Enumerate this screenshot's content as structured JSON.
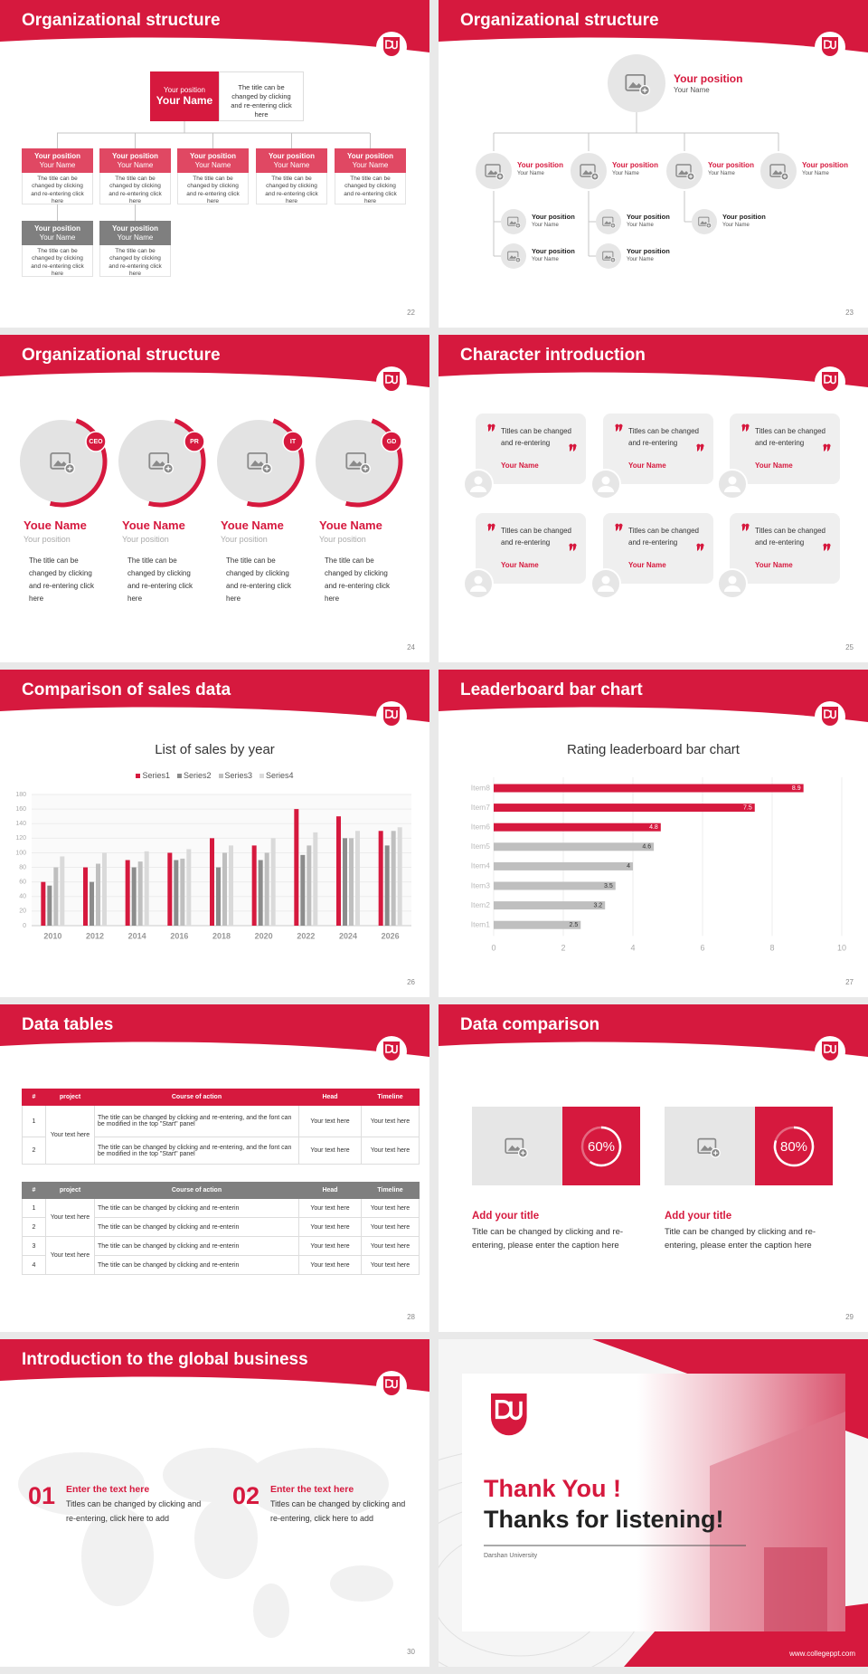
{
  "slides": [
    {
      "title": "Organizational structure",
      "page": "22",
      "top": {
        "position": "Your position",
        "name": "Your Name",
        "text": "The title can be changed by clicking and re-entering click here"
      },
      "boxes": [
        {
          "position": "Your position",
          "name": "Your Name",
          "text": "The title can be changed by clicking and re-entering click here"
        },
        {
          "position": "Your position",
          "name": "Your Name",
          "text": "The title can be changed by clicking and re-entering click here"
        },
        {
          "position": "Your position",
          "name": "Your Name",
          "text": "The title can be changed by clicking and re-entering click here"
        },
        {
          "position": "Your position",
          "name": "Your Name",
          "text": "The title can be changed by clicking and re-entering click here"
        },
        {
          "position": "Your position",
          "name": "Your Name",
          "text": "The title can be changed by clicking and re-entering click here"
        },
        {
          "position": "Your position",
          "name": "Your Name",
          "text": "The title can be changed by clicking and re-entering click here"
        },
        {
          "position": "Your position",
          "name": "Your Name",
          "text": "The title can be changed by clicking and re-entering click here"
        }
      ]
    },
    {
      "title": "Organizational structure",
      "page": "23",
      "top": {
        "position": "Your position",
        "name": "Your Name"
      },
      "level1": [
        {
          "position": "Your position",
          "name": "Your Name"
        },
        {
          "position": "Your position",
          "name": "Your Name"
        },
        {
          "position": "Your position",
          "name": "Your Name"
        },
        {
          "position": "Your position",
          "name": "Your Name"
        }
      ],
      "level2": [
        {
          "position": "Your position",
          "name": "Your Name"
        },
        {
          "position": "Your position",
          "name": "Your Name"
        },
        {
          "position": "Your position",
          "name": "Your Name"
        },
        {
          "position": "Your position",
          "name": "Your Name"
        },
        {
          "position": "Your position",
          "name": "Your Name"
        }
      ]
    },
    {
      "title": "Organizational structure",
      "page": "24",
      "people": [
        {
          "tag": "CEO",
          "name": "Youe Name",
          "position": "Your position",
          "text": "The title can be changed by clicking and re-entering click here"
        },
        {
          "tag": "PR",
          "name": "Youe Name",
          "position": "Your position",
          "text": "The title can be changed by clicking and re-entering click here"
        },
        {
          "tag": "IT",
          "name": "Youe Name",
          "position": "Your position",
          "text": "The title can be changed by clicking and re-entering click here"
        },
        {
          "tag": "GD",
          "name": "Youe Name",
          "position": "Your position",
          "text": "The title can be changed by clicking and re-entering click here"
        }
      ]
    },
    {
      "title": "Character introduction",
      "page": "25",
      "quotes": [
        {
          "text": "Titles can be changed and re-entering",
          "name": "Your Name"
        },
        {
          "text": "Titles can be changed and re-entering",
          "name": "Your Name"
        },
        {
          "text": "Titles can be changed and re-entering",
          "name": "Your Name"
        },
        {
          "text": "Titles can be changed and re-entering",
          "name": "Your Name"
        },
        {
          "text": "Titles can be changed and re-entering",
          "name": "Your Name"
        },
        {
          "text": "Titles can be changed and re-entering",
          "name": "Your Name"
        }
      ]
    },
    {
      "title": "Comparison of sales data",
      "page": "26",
      "chart": {
        "type": "bar",
        "title": "List of sales by year",
        "categories": [
          "2010",
          "2012",
          "2014",
          "2016",
          "2018",
          "2020",
          "2022",
          "2024",
          "2026"
        ],
        "series": [
          {
            "name": "Series1",
            "color": "#d6193e",
            "values": [
              60,
              80,
              90,
              100,
              120,
              110,
              160,
              150,
              130
            ]
          },
          {
            "name": "Series2",
            "color": "#8c8c8c",
            "values": [
              55,
              60,
              80,
              90,
              80,
              90,
              97,
              120,
              110
            ]
          },
          {
            "name": "Series3",
            "color": "#bfbfbf",
            "values": [
              80,
              85,
              88,
              92,
              100,
              100,
              110,
              120,
              130
            ]
          },
          {
            "name": "Series4",
            "color": "#dadada",
            "values": [
              95,
              100,
              102,
              105,
              110,
              120,
              128,
              130,
              135
            ]
          }
        ],
        "ylim": [
          0,
          180
        ],
        "yticks": [
          0,
          20,
          40,
          60,
          80,
          100,
          120,
          140,
          160,
          180
        ],
        "grid": true,
        "legend": "top"
      }
    },
    {
      "title": "Leaderboard bar chart",
      "page": "27",
      "chart": {
        "type": "barh",
        "title": "Rating leaderboard bar chart",
        "categories": [
          "Item8",
          "Item7",
          "Item6",
          "Item5",
          "Item4",
          "Item3",
          "Item2",
          "Item1"
        ],
        "values": [
          8.9,
          7.5,
          4.8,
          4.6,
          4,
          3.5,
          3.2,
          2.5
        ],
        "colors": [
          "#d6193e",
          "#d6193e",
          "#d6193e",
          "#bfbfbf",
          "#bfbfbf",
          "#bfbfbf",
          "#bfbfbf",
          "#bfbfbf"
        ],
        "xlim": [
          0,
          10
        ],
        "xticks": [
          0,
          2,
          4,
          6,
          8,
          10
        ],
        "grid": true
      }
    },
    {
      "title": "Data tables",
      "page": "28",
      "table1": {
        "header": [
          "#",
          "project",
          "Course of action",
          "Head",
          "Timeline"
        ],
        "rows": [
          [
            "1",
            "Your text here",
            "The title can be changed by clicking and re-entering, and the font can be modified in the top \"Start\" panel",
            "Your text here",
            "Your text here"
          ],
          [
            "2",
            "The title can be changed by clicking and re-entering, and the font can be modified in the top \"Start\" panel",
            "Your text here",
            "Your text here"
          ]
        ]
      },
      "table2": {
        "header": [
          "#",
          "project",
          "Course of action",
          "Head",
          "Timeline"
        ],
        "rows": [
          [
            "1",
            "Your text here",
            "The title can be changed by clicking and re-enterin",
            "Your text here",
            "Your text here"
          ],
          [
            "2",
            "The title can be changed by clicking and re-enterin",
            "Your text here",
            "Your text here"
          ],
          [
            "3",
            "Your text here",
            "The title can be changed by clicking and re-enterin",
            "Your text here",
            "Your text here"
          ],
          [
            "4",
            "The title can be changed by clicking and re-enterin",
            "Your text here",
            "Your text here"
          ]
        ]
      }
    },
    {
      "title": "Data comparison",
      "page": "29",
      "items": [
        {
          "value": {
            "value": 60,
            "label": "60%"
          },
          "title": "Add your title",
          "text": "Title can be changed by clicking and re-entering, please enter the caption here"
        },
        {
          "value": {
            "value": 80,
            "label": "80%"
          },
          "title": "Add your title",
          "text": "Title can be changed by clicking and re-entering, please enter the caption here"
        }
      ]
    },
    {
      "title": "Introduction to the global business",
      "page": "30",
      "items": [
        {
          "number": "01",
          "heading": "Enter the text here",
          "text": "Titles can be changed by clicking and re-entering, click here to add"
        },
        {
          "number": "02",
          "heading": "Enter the text here",
          "text": "Titles can be changed by clicking and re-entering, click here to add"
        }
      ]
    },
    {
      "thanks": "Thank You !",
      "subtitle": "Thanks for listening!",
      "org": "Darshan University",
      "url": "www.collegeppt.com"
    }
  ]
}
